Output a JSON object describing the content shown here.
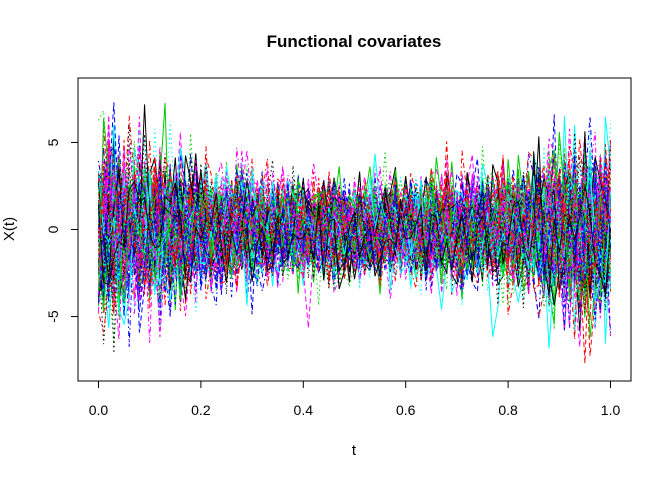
{
  "chart_data": {
    "type": "line",
    "title": "Functional covariates",
    "xlabel": "t",
    "ylabel": "X(t)",
    "xlim": [
      -0.04,
      1.04
    ],
    "ylim": [
      -8.7,
      8.7
    ],
    "x_ticks": [
      "0.0",
      "0.2",
      "0.4",
      "0.6",
      "0.8",
      "1.0"
    ],
    "y_ticks": [
      "-5",
      "0",
      "5"
    ],
    "n_curves": 100,
    "n_points_per_curve": 101,
    "palette": [
      "#000000",
      "#ff0000",
      "#00cd00",
      "#0000ff",
      "#00ffff",
      "#ff00ff"
    ],
    "line_dash_cycle": [
      "solid",
      "dashed",
      "dotted",
      "dotdash"
    ],
    "envelope_sd_profile": {
      "t": [
        0.0,
        0.2,
        0.4,
        0.6,
        0.8,
        1.0
      ],
      "sd": [
        2.6,
        1.6,
        1.3,
        1.3,
        1.6,
        2.6
      ]
    },
    "grid": false,
    "legend": "none"
  }
}
